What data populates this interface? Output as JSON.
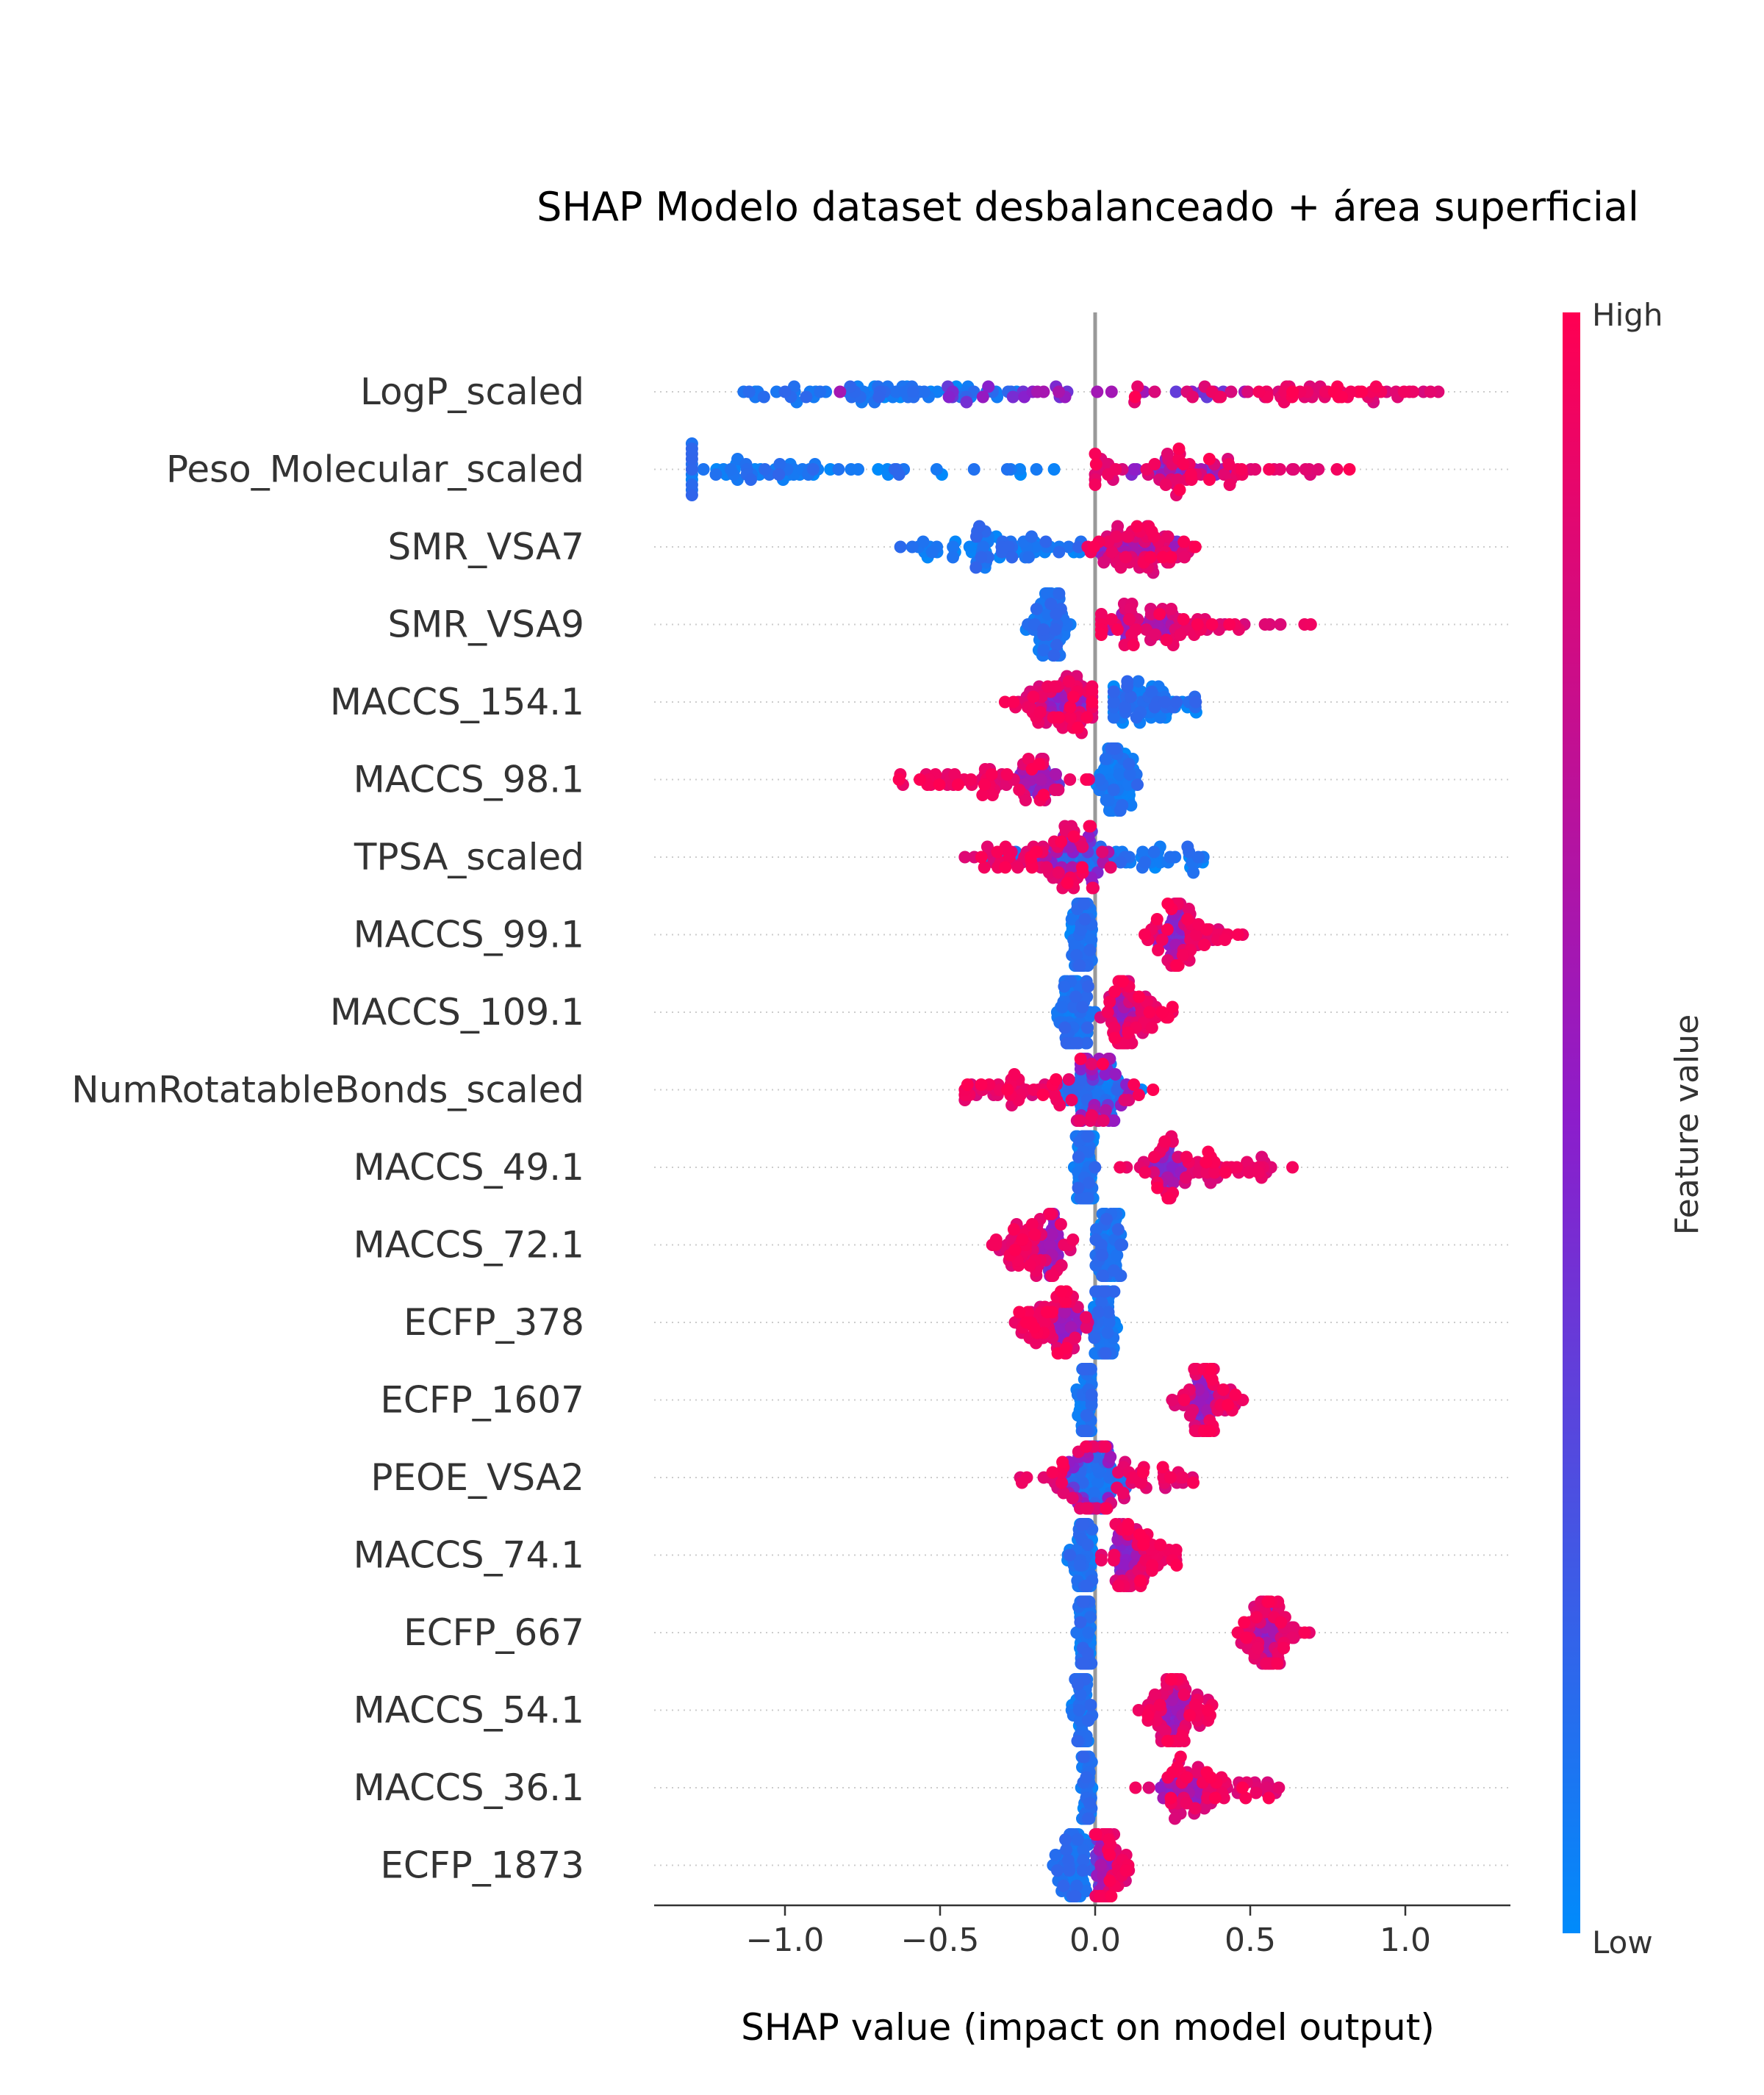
{
  "chart_data": {
    "type": "scatter",
    "subtype": "shap-beeswarm",
    "title": "SHAP Modelo dataset desbalanceado + área superficial",
    "xlabel": "SHAP value (impact on model output)",
    "xlim": [
      -1.42,
      1.33
    ],
    "xticks": [
      -1.0,
      -0.5,
      0.0,
      0.5,
      1.0
    ],
    "xtick_labels": [
      "−1.0",
      "−0.5",
      "0.0",
      "0.5",
      "1.0"
    ],
    "colorbar": {
      "label": "Feature value",
      "high_label": "High",
      "low_label": "Low",
      "low_color": "#008bfb",
      "mid_color": "#8c1dcb",
      "high_color": "#ff0052"
    },
    "features": [
      {
        "name": "LogP_scaled",
        "low_range": [
          -1.22,
          -0.2
        ],
        "low_center": -0.68,
        "high_range": [
          0.1,
          1.19
        ],
        "high_center": 0.72,
        "mixed_range": [
          -0.9,
          0.6
        ]
      },
      {
        "name": "Peso_Molecular_scaled",
        "low_range": [
          -1.3,
          -0.1
        ],
        "low_center": -1.1,
        "high_range": [
          0.0,
          0.99
        ],
        "high_center": 0.3,
        "mixed_range": [
          0.05,
          0.45
        ]
      },
      {
        "name": "SMR_VSA7",
        "low_range": [
          -0.63,
          0.05
        ],
        "low_center": -0.3,
        "high_range": [
          -0.05,
          0.34
        ],
        "high_center": 0.12,
        "mixed_range": [
          0.0,
          0.3
        ]
      },
      {
        "name": "SMR_VSA9",
        "low_range": [
          -0.24,
          -0.08
        ],
        "low_center": -0.15,
        "high_range": [
          0.02,
          0.72
        ],
        "high_center": 0.2,
        "mixed_range": [
          0.0,
          0.35
        ]
      },
      {
        "name": "MACCS_154.1",
        "low_range": [
          0.06,
          0.35
        ],
        "low_center": 0.12,
        "high_range": [
          -0.3,
          -0.01
        ],
        "high_center": -0.1,
        "mixed_range": [
          -0.2,
          0.0
        ]
      },
      {
        "name": "MACCS_98.1",
        "low_range": [
          0.0,
          0.15
        ],
        "low_center": 0.07,
        "high_range": [
          -0.65,
          -0.02
        ],
        "high_center": -0.32,
        "mixed_range": [
          -0.3,
          -0.1
        ]
      },
      {
        "name": "TPSA_scaled",
        "low_range": [
          -0.38,
          0.37
        ],
        "low_center": 0.05,
        "high_range": [
          -0.48,
          0.05
        ],
        "high_center": -0.18,
        "mixed_range": [
          -0.2,
          0.1
        ]
      },
      {
        "name": "MACCS_99.1",
        "low_range": [
          -0.08,
          -0.01
        ],
        "low_center": -0.04,
        "high_range": [
          0.16,
          0.5
        ],
        "high_center": 0.3,
        "mixed_range": [
          0.2,
          0.3
        ]
      },
      {
        "name": "MACCS_109.1",
        "low_range": [
          -0.13,
          0.0
        ],
        "low_center": -0.06,
        "high_range": [
          0.01,
          0.26
        ],
        "high_center": 0.12,
        "mixed_range": [
          0.05,
          0.15
        ]
      },
      {
        "name": "NumRotatableBonds_scaled",
        "low_range": [
          -0.12,
          0.15
        ],
        "low_center": 0.0,
        "high_range": [
          -0.42,
          0.2
        ],
        "high_center": -0.2,
        "mixed_range": [
          -0.1,
          0.12
        ]
      },
      {
        "name": "MACCS_49.1",
        "low_range": [
          -0.07,
          0.0
        ],
        "low_center": -0.03,
        "high_range": [
          0.08,
          0.67
        ],
        "high_center": 0.35,
        "mixed_range": [
          0.15,
          0.3
        ]
      },
      {
        "name": "MACCS_72.1",
        "low_range": [
          0.0,
          0.09
        ],
        "low_center": 0.04,
        "high_range": [
          -0.34,
          -0.07
        ],
        "high_center": -0.2,
        "mixed_range": [
          -0.2,
          -0.1
        ]
      },
      {
        "name": "ECFP_378",
        "low_range": [
          -0.02,
          0.07
        ],
        "low_center": 0.03,
        "high_range": [
          -0.26,
          -0.02
        ],
        "high_center": -0.15,
        "mixed_range": [
          -0.15,
          -0.05
        ]
      },
      {
        "name": "ECFP_1607",
        "low_range": [
          -0.06,
          -0.01
        ],
        "low_center": -0.03,
        "high_range": [
          0.23,
          0.48
        ],
        "high_center": 0.36,
        "mixed_range": [
          0.3,
          0.4
        ]
      },
      {
        "name": "PEOE_VSA2",
        "low_range": [
          -0.1,
          0.12
        ],
        "low_center": 0.0,
        "high_range": [
          -0.26,
          0.33
        ],
        "high_center": 0.05,
        "mixed_range": [
          -0.12,
          0.05
        ]
      },
      {
        "name": "MACCS_74.1",
        "low_range": [
          -0.1,
          -0.01
        ],
        "low_center": -0.04,
        "high_range": [
          0.02,
          0.28
        ],
        "high_center": 0.14,
        "mixed_range": [
          0.05,
          0.15
        ]
      },
      {
        "name": "ECFP_667",
        "low_range": [
          -0.06,
          -0.01
        ],
        "low_center": -0.03,
        "high_range": [
          0.46,
          0.7
        ],
        "high_center": 0.57,
        "mixed_range": [
          0.5,
          0.6
        ]
      },
      {
        "name": "MACCS_54.1",
        "low_range": [
          -0.08,
          -0.01
        ],
        "low_center": -0.04,
        "high_range": [
          0.14,
          0.38
        ],
        "high_center": 0.27,
        "mixed_range": [
          0.2,
          0.3
        ]
      },
      {
        "name": "MACCS_36.1",
        "low_range": [
          -0.05,
          -0.01
        ],
        "low_center": -0.03,
        "high_range": [
          0.13,
          0.6
        ],
        "high_center": 0.36,
        "mixed_range": [
          0.2,
          0.4
        ]
      },
      {
        "name": "ECFP_1873",
        "low_range": [
          -0.15,
          -0.01
        ],
        "low_center": -0.06,
        "high_range": [
          0.0,
          0.11
        ],
        "high_center": 0.04,
        "mixed_range": [
          0.0,
          0.05
        ]
      }
    ]
  }
}
